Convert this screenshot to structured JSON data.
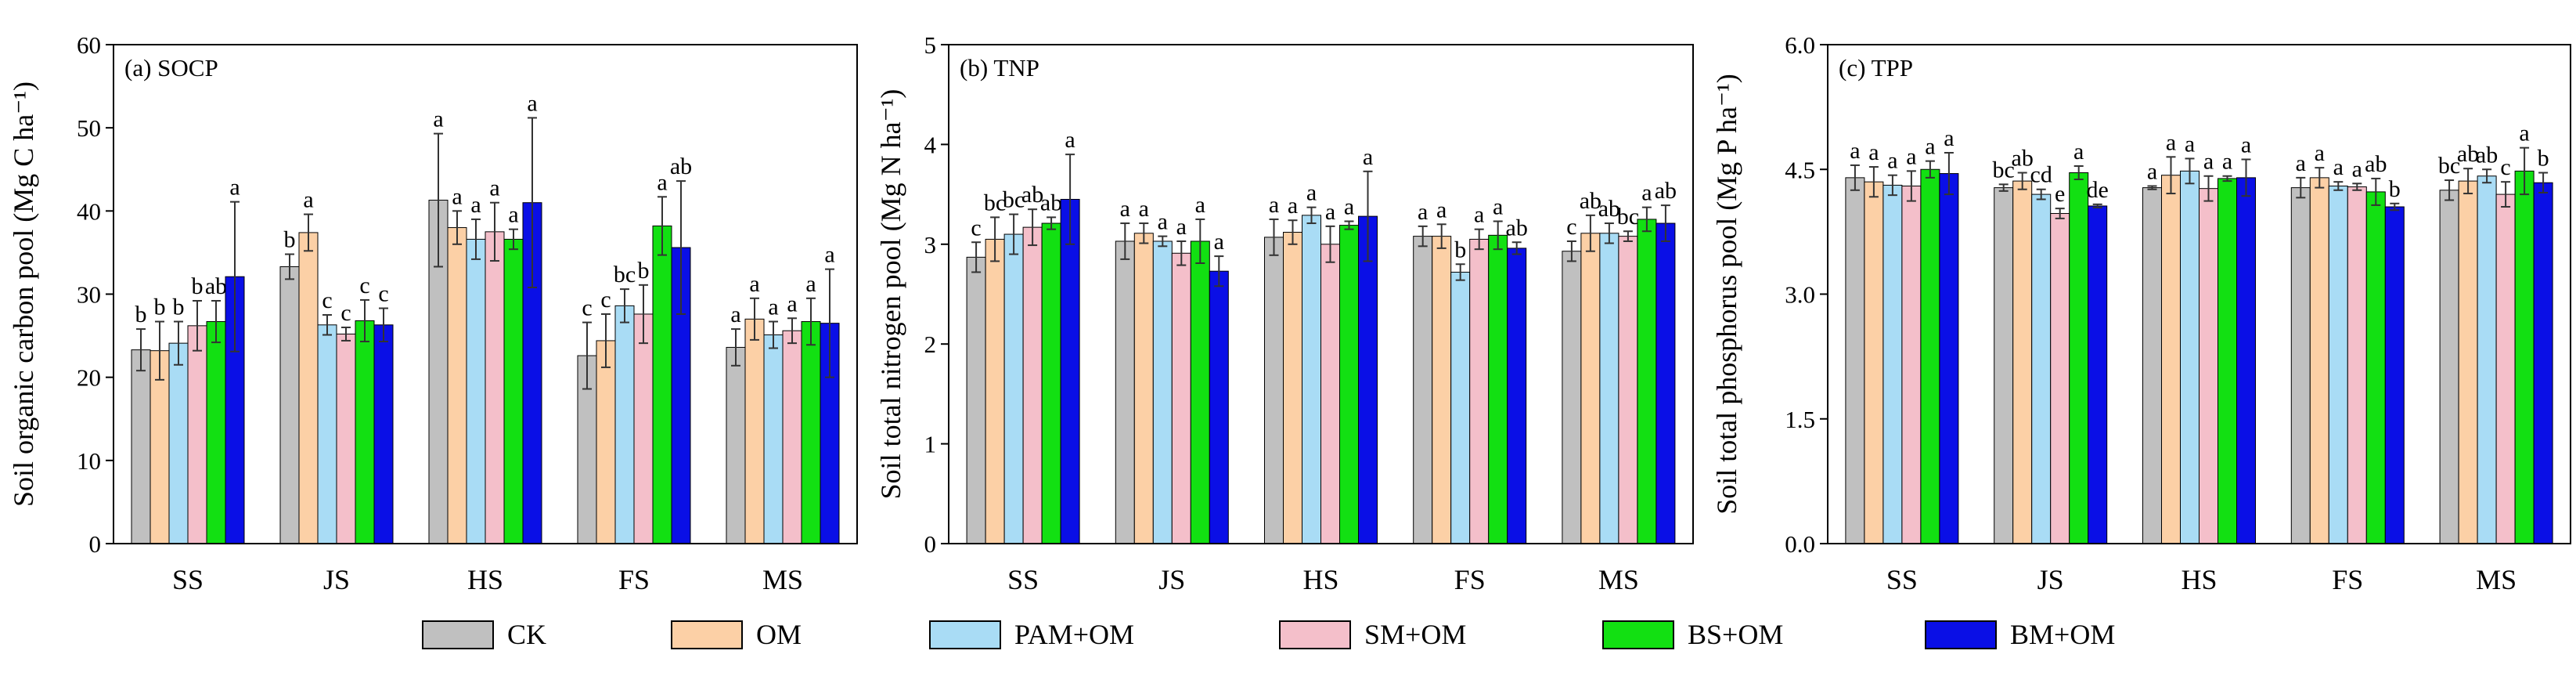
{
  "chart_data": [
    {
      "type": "bar",
      "panel_label": "(a) SOCP",
      "ylabel": "Soil organic carbon pool (Mg C ha⁻¹)",
      "ylim": [
        0,
        60
      ],
      "yticks": [
        "0",
        "10",
        "20",
        "30",
        "40",
        "50",
        "60"
      ],
      "categories": [
        "SS",
        "JS",
        "HS",
        "FS",
        "MS"
      ],
      "series": [
        {
          "name": "CK",
          "values": [
            23.3,
            33.3,
            41.3,
            22.6,
            23.6
          ],
          "errors": [
            2.5,
            1.5,
            8.0,
            4.0,
            2.2
          ],
          "letters": [
            "b",
            "b",
            "a",
            "c",
            "a"
          ]
        },
        {
          "name": "OM",
          "values": [
            23.2,
            37.4,
            38.0,
            24.4,
            27.0
          ],
          "errors": [
            3.5,
            2.2,
            2.0,
            3.2,
            2.5
          ],
          "letters": [
            "b",
            "a",
            "a",
            "c",
            "a"
          ]
        },
        {
          "name": "PAM+OM",
          "values": [
            24.1,
            26.3,
            36.6,
            28.6,
            25.1
          ],
          "errors": [
            2.6,
            1.2,
            2.4,
            2.0,
            1.6
          ],
          "letters": [
            "b",
            "c",
            "a",
            "bc",
            "a"
          ]
        },
        {
          "name": "SM+OM",
          "values": [
            26.2,
            25.2,
            37.5,
            27.6,
            25.6
          ],
          "errors": [
            3.0,
            0.8,
            3.5,
            3.5,
            1.5
          ],
          "letters": [
            "b",
            "c",
            "a",
            "b",
            "a"
          ]
        },
        {
          "name": "BS+OM",
          "values": [
            26.7,
            26.8,
            36.6,
            38.2,
            26.7
          ],
          "errors": [
            2.5,
            2.5,
            1.2,
            3.5,
            2.8
          ],
          "letters": [
            "ab",
            "c",
            "a",
            "a",
            "a"
          ]
        },
        {
          "name": "BM+OM",
          "values": [
            32.1,
            26.3,
            41.0,
            35.6,
            26.5
          ],
          "errors": [
            9.0,
            2.0,
            10.2,
            8.0,
            6.5
          ],
          "letters": [
            "a",
            "c",
            "a",
            "ab",
            "a"
          ]
        }
      ]
    },
    {
      "type": "bar",
      "panel_label": "(b) TNP",
      "ylabel": "Soil total nitrogen pool (Mg N ha⁻¹)",
      "ylim": [
        0,
        5
      ],
      "yticks": [
        "0",
        "1",
        "2",
        "3",
        "4",
        "5"
      ],
      "categories": [
        "SS",
        "JS",
        "HS",
        "FS",
        "MS"
      ],
      "series": [
        {
          "name": "CK",
          "values": [
            2.87,
            3.03,
            3.07,
            3.08,
            2.93
          ],
          "errors": [
            0.15,
            0.18,
            0.18,
            0.1,
            0.1
          ],
          "letters": [
            "c",
            "a",
            "a",
            "a",
            "c"
          ]
        },
        {
          "name": "OM",
          "values": [
            3.05,
            3.11,
            3.12,
            3.08,
            3.11
          ],
          "errors": [
            0.22,
            0.1,
            0.12,
            0.12,
            0.18
          ],
          "letters": [
            "bc",
            "a",
            "a",
            "a",
            "ab"
          ]
        },
        {
          "name": "PAM+OM",
          "values": [
            3.1,
            3.03,
            3.29,
            2.72,
            3.11
          ],
          "errors": [
            0.2,
            0.05,
            0.08,
            0.08,
            0.1
          ],
          "letters": [
            "bc",
            "a",
            "a",
            "b",
            "ab"
          ]
        },
        {
          "name": "SM+OM",
          "values": [
            3.17,
            2.91,
            3.0,
            3.05,
            3.08
          ],
          "errors": [
            0.18,
            0.12,
            0.18,
            0.1,
            0.05
          ],
          "letters": [
            "ab",
            "a",
            "a",
            "a",
            "bc"
          ]
        },
        {
          "name": "BS+OM",
          "values": [
            3.21,
            3.03,
            3.19,
            3.09,
            3.25
          ],
          "errors": [
            0.06,
            0.22,
            0.04,
            0.14,
            0.12
          ],
          "letters": [
            "ab",
            "a",
            "a",
            "a",
            "a"
          ]
        },
        {
          "name": "BM+OM",
          "values": [
            3.45,
            2.73,
            3.28,
            2.96,
            3.21
          ],
          "errors": [
            0.45,
            0.15,
            0.45,
            0.06,
            0.18
          ],
          "letters": [
            "a",
            "a",
            "a",
            "ab",
            "ab"
          ]
        }
      ]
    },
    {
      "type": "bar",
      "panel_label": "(c) TPP",
      "ylabel": "Soil total phosphorus pool (Mg P ha⁻¹)",
      "ylim": [
        0,
        6
      ],
      "yticks": [
        "0.0",
        "1.5",
        "3.0",
        "4.5",
        "6.0"
      ],
      "categories": [
        "SS",
        "JS",
        "HS",
        "FS",
        "MS"
      ],
      "series": [
        {
          "name": "CK",
          "values": [
            4.4,
            4.28,
            4.28,
            4.28,
            4.25
          ],
          "errors": [
            0.15,
            0.04,
            0.02,
            0.12,
            0.12
          ],
          "letters": [
            "a",
            "bc",
            "a",
            "a",
            "bc"
          ]
        },
        {
          "name": "OM",
          "values": [
            4.35,
            4.36,
            4.43,
            4.4,
            4.36
          ],
          "errors": [
            0.18,
            0.1,
            0.22,
            0.12,
            0.15
          ],
          "letters": [
            "a",
            "ab",
            "a",
            "a",
            "ab"
          ]
        },
        {
          "name": "PAM+OM",
          "values": [
            4.31,
            4.2,
            4.48,
            4.3,
            4.42
          ],
          "errors": [
            0.12,
            0.06,
            0.15,
            0.05,
            0.08
          ],
          "letters": [
            "a",
            "cd",
            "a",
            "a",
            "ab"
          ]
        },
        {
          "name": "SM+OM",
          "values": [
            4.3,
            3.97,
            4.27,
            4.29,
            4.2
          ],
          "errors": [
            0.18,
            0.06,
            0.15,
            0.04,
            0.15
          ],
          "letters": [
            "a",
            "e",
            "a",
            "a",
            "c"
          ]
        },
        {
          "name": "BS+OM",
          "values": [
            4.5,
            4.46,
            4.39,
            4.23,
            4.48
          ],
          "errors": [
            0.1,
            0.08,
            0.03,
            0.16,
            0.28
          ],
          "letters": [
            "a",
            "a",
            "a",
            "ab",
            "a"
          ]
        },
        {
          "name": "BM+OM",
          "values": [
            4.45,
            4.06,
            4.4,
            4.05,
            4.34
          ],
          "errors": [
            0.25,
            0.02,
            0.22,
            0.04,
            0.12
          ],
          "letters": [
            "a",
            "de",
            "a",
            "b",
            "b"
          ]
        }
      ]
    }
  ],
  "legend": [
    {
      "name": "CK",
      "color": "#c0c0c0"
    },
    {
      "name": "OM",
      "color": "#fcd0a6"
    },
    {
      "name": "PAM+OM",
      "color": "#a9dcf5"
    },
    {
      "name": "SM+OM",
      "color": "#f4bfca"
    },
    {
      "name": "BS+OM",
      "color": "#12e012"
    },
    {
      "name": "BM+OM",
      "color": "#0a0fe6"
    }
  ]
}
